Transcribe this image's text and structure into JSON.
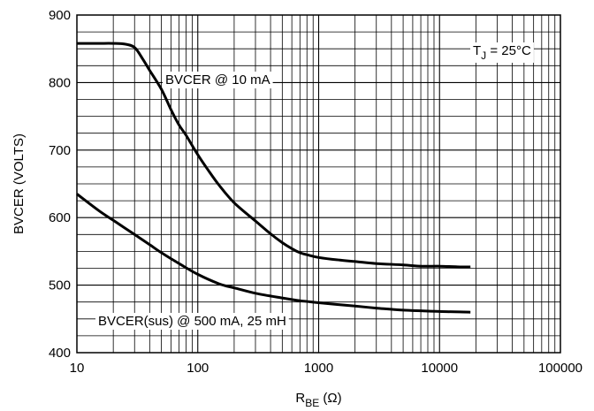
{
  "chart_data": {
    "type": "line",
    "title": "",
    "xlabel": {
      "main": "R",
      "sub": "BE",
      "unit": " (Ω)"
    },
    "ylabel": "BVCER (VOLTS)",
    "xscale": "log",
    "xlim": [
      10,
      100000
    ],
    "ylim": [
      400,
      900
    ],
    "xticks": [
      10,
      100,
      1000,
      10000,
      100000
    ],
    "xtick_labels": [
      "10",
      "100",
      "1000",
      "10000",
      "100000"
    ],
    "yticks": [
      400,
      500,
      600,
      700,
      800,
      900
    ],
    "ytick_labels": [
      "400",
      "500",
      "600",
      "700",
      "800",
      "900"
    ],
    "grid": true,
    "series": [
      {
        "name": "BVCER @ 10 mA",
        "x": [
          10,
          15,
          20,
          25,
          30,
          35,
          40,
          50,
          60,
          70,
          80,
          100,
          120,
          150,
          200,
          300,
          400,
          500,
          600,
          700,
          800,
          1000,
          1500,
          2000,
          3000,
          5000,
          7000,
          10000,
          15000,
          18000
        ],
        "y": [
          858,
          858,
          858,
          857,
          852,
          835,
          818,
          790,
          760,
          737,
          722,
          693,
          672,
          648,
          622,
          595,
          576,
          563,
          554,
          548,
          545,
          541,
          537,
          535,
          532,
          530,
          528,
          528,
          527,
          527
        ]
      },
      {
        "name": "BVCER(sus) @ 500 mA, 25 mH",
        "x": [
          10,
          15,
          20,
          30,
          40,
          50,
          70,
          100,
          150,
          200,
          300,
          500,
          700,
          1000,
          2000,
          3000,
          5000,
          10000,
          18000
        ],
        "y": [
          635,
          611,
          596,
          575,
          560,
          548,
          532,
          516,
          502,
          496,
          488,
          481,
          477,
          474,
          469,
          466,
          463,
          461,
          460
        ]
      }
    ],
    "annotations": [
      {
        "text": "BVCER @ 10 mA",
        "series": 0
      },
      {
        "text": "BVCER(sus) @ 500 mA, 25 mH",
        "series": 1
      },
      {
        "main": "T",
        "sub": "J",
        "rest": " = 25°C"
      }
    ]
  }
}
